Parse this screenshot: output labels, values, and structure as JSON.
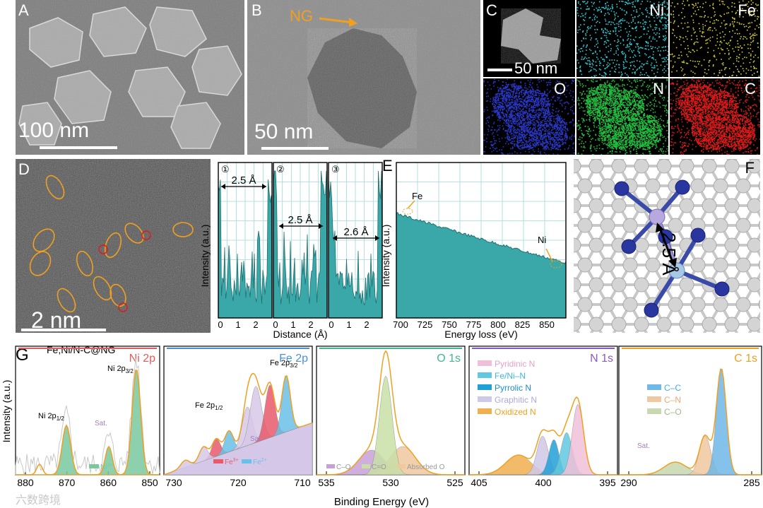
{
  "panelA": {
    "label": "A",
    "scale": "100 nm"
  },
  "panelB": {
    "label": "B",
    "scale": "50 nm",
    "annotation": "NG"
  },
  "panelC": {
    "label": "C",
    "scale": "50 nm",
    "maps": [
      "Ni",
      "Fe",
      "O",
      "N",
      "C"
    ],
    "map_colors": [
      "#2ad0d8",
      "#d8d020",
      "#2a38c8",
      "#22c040",
      "#e01a1a"
    ]
  },
  "panelD": {
    "label": "D",
    "scale": "2 nm"
  },
  "lineProfiles": {
    "ylabel": "Intensity (a.u.)",
    "xlabel": "Distance (Å)",
    "markers": [
      "①",
      "②",
      "③"
    ],
    "distances": [
      "2.5 Å",
      "2.5 Å",
      "2.6 Å"
    ],
    "ticks1": [
      "0",
      "1",
      "2"
    ],
    "ticks2": [
      "0",
      "1",
      "2"
    ],
    "ticks3": [
      "0",
      "1",
      "2"
    ]
  },
  "panelE": {
    "label": "E",
    "ylabel": "Intensity (a.u.)",
    "xlabel": "Energy loss (eV)",
    "ticks": [
      "700",
      "725",
      "750",
      "775",
      "800",
      "825",
      "850"
    ],
    "annotations": [
      "Fe",
      "Ni"
    ]
  },
  "panelF": {
    "label": "F",
    "distance": "2.5 Å"
  },
  "panelG": {
    "label": "G",
    "sample": "Fe,Ni/N-C@NG",
    "ylabel": "Intensity (a.u.)",
    "xlabel": "Binding Energy (eV)",
    "ni": {
      "title": "Ni 2p",
      "peak1": "Ni 2p",
      "peak1_sub": "1/2",
      "peak2": "Ni 2p",
      "peak2_sub": "3/2",
      "sat": "Sat.",
      "legend": "Ni",
      "legend_sup": "2+",
      "ticks": [
        "880",
        "870",
        "860",
        "850"
      ]
    },
    "fe": {
      "title": "Fe 2p",
      "peak1": "Fe 2p",
      "peak1_sub": "1/2",
      "peak2": "Fe 2p",
      "peak2_sub": "3/2",
      "sat": "Sat.",
      "legend1": "Fe",
      "legend1_sup": "3+",
      "legend2": "Fe",
      "legend2_sup": "2+",
      "ticks": [
        "730",
        "720",
        "710"
      ]
    },
    "o": {
      "title": "O 1s",
      "legend": [
        "C–O",
        "C=O",
        "Absorbed O"
      ],
      "ticks": [
        "535",
        "530",
        "525"
      ]
    },
    "n": {
      "title": "N 1s",
      "legend": [
        "Pyridinic N",
        "Fe/Ni–N",
        "Pyrrolic N",
        "Graphitic N",
        "Oxidized N"
      ],
      "ticks": [
        "405",
        "400",
        "395"
      ]
    },
    "c": {
      "title": "C 1s",
      "legend": [
        "C–C",
        "C–N",
        "C–O"
      ],
      "sat": "Sat.",
      "ticks": [
        "290",
        "285"
      ]
    }
  },
  "colors": {
    "teal": "#3aa8a8",
    "orange": "#f0a020",
    "ni_title": "#e85a5a",
    "fe_title": "#4a90d8",
    "o_title": "#40b890",
    "n_title": "#8a5ac8",
    "c_title": "#f0a020"
  },
  "watermark": "六数跨境"
}
